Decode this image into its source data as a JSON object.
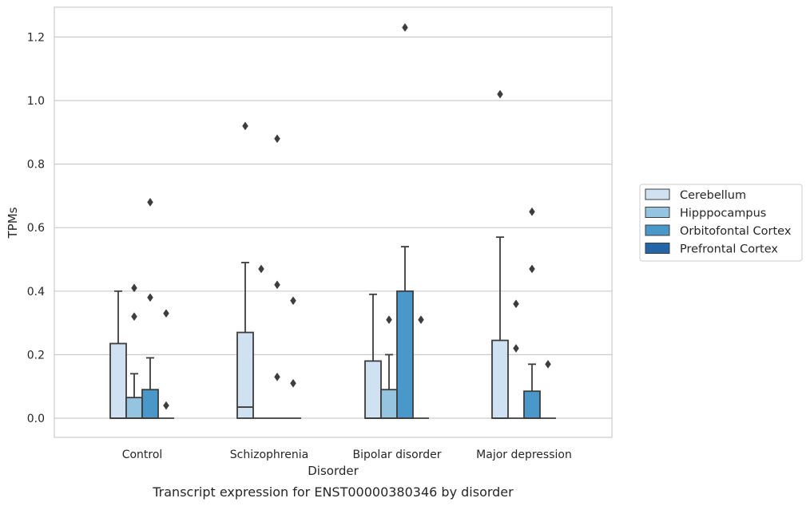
{
  "chart_data": {
    "type": "box",
    "xlabel": "Disorder",
    "ylabel": "TPMs",
    "caption": "Transcript expression for ENST00000380346 by disorder",
    "ylim": [
      -0.06,
      1.29
    ],
    "yticks": [
      "0.0",
      "0.2",
      "0.4",
      "0.6",
      "0.8",
      "1.0",
      "1.2"
    ],
    "grid": "horizontal",
    "legend_position": "right",
    "categories": [
      "Control",
      "Schizophrenia",
      "Bipolar disorder",
      "Major depression"
    ],
    "series": [
      {
        "name": "Cerebellum",
        "color": "#d0e1f2",
        "boxes": [
          {
            "q1": 0,
            "median": 0,
            "q3": 0.235,
            "whisker_low": 0,
            "whisker_high": 0.4,
            "outliers": []
          },
          {
            "q1": 0,
            "median": 0.035,
            "q3": 0.27,
            "whisker_low": 0,
            "whisker_high": 0.49,
            "outliers": [
              0.92
            ]
          },
          {
            "q1": 0,
            "median": 0,
            "q3": 0.18,
            "whisker_low": 0,
            "whisker_high": 0.39,
            "outliers": []
          },
          {
            "q1": 0,
            "median": 0,
            "q3": 0.245,
            "whisker_low": 0,
            "whisker_high": 0.57,
            "outliers": [
              1.02
            ]
          }
        ]
      },
      {
        "name": "Hipppocampus",
        "color": "#94c4df",
        "boxes": [
          {
            "q1": 0,
            "median": 0,
            "q3": 0.065,
            "whisker_low": 0,
            "whisker_high": 0.14,
            "outliers": [
              0.32,
              0.41
            ]
          },
          {
            "q1": 0,
            "median": 0,
            "q3": 0,
            "whisker_low": 0,
            "whisker_high": 0,
            "outliers": [
              0.47
            ]
          },
          {
            "q1": 0,
            "median": 0,
            "q3": 0.09,
            "whisker_low": 0,
            "whisker_high": 0.2,
            "outliers": [
              0.31
            ]
          },
          {
            "q1": 0,
            "median": 0,
            "q3": 0,
            "whisker_low": 0,
            "whisker_high": 0,
            "outliers": [
              0.22,
              0.36
            ]
          }
        ]
      },
      {
        "name": "Orbitofontal Cortex",
        "color": "#4a98c9",
        "boxes": [
          {
            "q1": 0,
            "median": 0,
            "q3": 0.09,
            "whisker_low": 0,
            "whisker_high": 0.19,
            "outliers": [
              0.38,
              0.68
            ]
          },
          {
            "q1": 0,
            "median": 0,
            "q3": 0,
            "whisker_low": 0,
            "whisker_high": 0,
            "outliers": [
              0.13,
              0.42,
              0.88
            ]
          },
          {
            "q1": 0,
            "median": 0,
            "q3": 0.4,
            "whisker_low": 0,
            "whisker_high": 0.54,
            "outliers": [
              1.23
            ]
          },
          {
            "q1": 0,
            "median": 0,
            "q3": 0.085,
            "whisker_low": 0,
            "whisker_high": 0.17,
            "outliers": [
              0.47,
              0.65
            ]
          }
        ]
      },
      {
        "name": "Prefrontal Cortex",
        "color": "#2464a8",
        "boxes": [
          {
            "q1": 0,
            "median": 0,
            "q3": 0,
            "whisker_low": 0,
            "whisker_high": 0,
            "outliers": [
              0.04,
              0.33
            ]
          },
          {
            "q1": 0,
            "median": 0,
            "q3": 0,
            "whisker_low": 0,
            "whisker_high": 0,
            "outliers": [
              0.11,
              0.37
            ]
          },
          {
            "q1": 0,
            "median": 0,
            "q3": 0,
            "whisker_low": 0,
            "whisker_high": 0,
            "outliers": [
              0.31
            ]
          },
          {
            "q1": 0,
            "median": 0,
            "q3": 0,
            "whisker_low": 0,
            "whisker_high": 0,
            "outliers": [
              0.17
            ]
          }
        ]
      }
    ]
  }
}
